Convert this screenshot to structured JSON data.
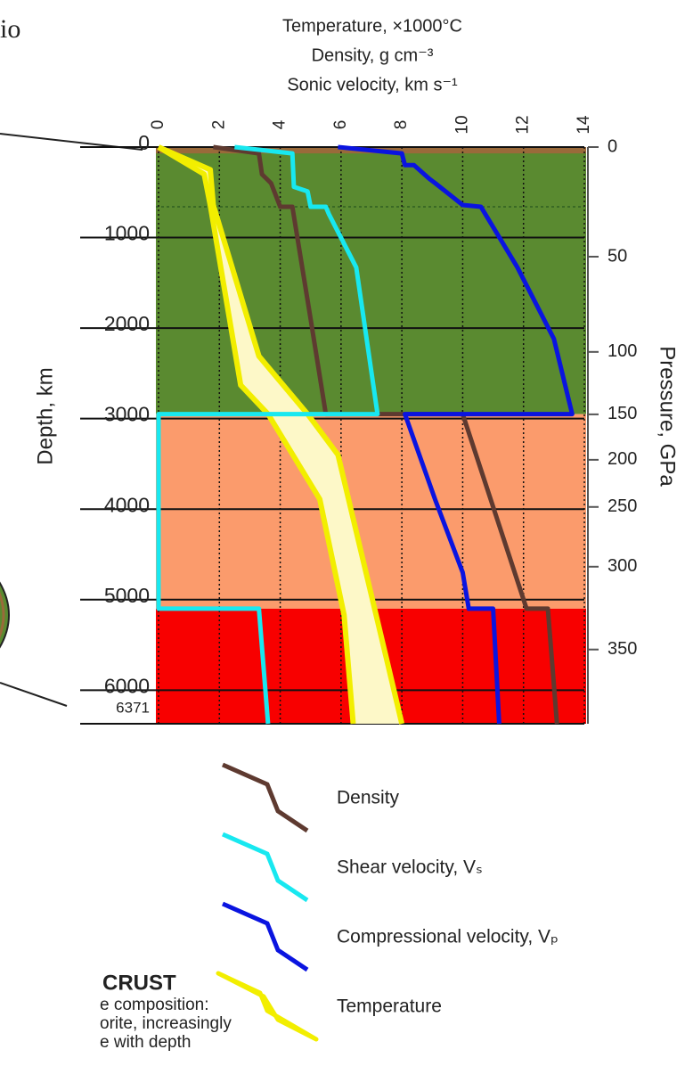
{
  "fragment_top": "io",
  "chart_data": {
    "type": "line",
    "x_label": [
      "Temperature, ×1000°C",
      "Density, g cm⁻³",
      "Sonic velocity, km s⁻¹"
    ],
    "ylabel": "Depth, km",
    "y2label": "Pressure, GPa",
    "xlim": [
      0,
      14
    ],
    "xticks": [
      0,
      2,
      4,
      6,
      8,
      10,
      12,
      14
    ],
    "ylim": [
      0,
      6371
    ],
    "yticks": [
      0,
      1000,
      2000,
      3000,
      4000,
      5000,
      6000,
      6371
    ],
    "pressure_ticks": [
      {
        "pressure": 0,
        "depth": 0
      },
      {
        "pressure": 50,
        "depth": 1211
      },
      {
        "pressure": 100,
        "depth": 2263
      },
      {
        "pressure": 150,
        "depth": 2953
      },
      {
        "pressure": 200,
        "depth": 3455
      },
      {
        "pressure": 250,
        "depth": 3976
      },
      {
        "pressure": 300,
        "depth": 4636
      },
      {
        "pressure": 350,
        "depth": 5551
      }
    ],
    "layers": [
      {
        "top": 0,
        "bottom": 2950,
        "color": "#5a8a30"
      },
      {
        "top": 2950,
        "bottom": 5100,
        "color": "#fb9b6c"
      },
      {
        "top": 5100,
        "bottom": 6371,
        "color": "#f80000"
      },
      {
        "top": 0,
        "bottom": 70,
        "color": "#9a6a3a"
      }
    ],
    "dashed_depth": 660,
    "series": [
      {
        "name": "Density",
        "color": "#5e3a30",
        "depth": [
          0,
          70,
          300,
          400,
          660,
          660,
          1900,
          2950,
          2950,
          5100,
          5100,
          6371
        ],
        "values": [
          1.8,
          3.3,
          3.4,
          3.7,
          4.0,
          4.4,
          5.0,
          5.5,
          10.0,
          12.1,
          12.8,
          13.1
        ]
      },
      {
        "name": "Shear velocity, Vₛ",
        "color": "#18e8f0",
        "depth": [
          0,
          70,
          440,
          490,
          660,
          660,
          740,
          1330,
          2950,
          2950,
          5100,
          5100,
          6371
        ],
        "values": [
          2.5,
          4.4,
          4.45,
          4.9,
          5.0,
          5.5,
          5.6,
          6.5,
          7.2,
          0,
          0,
          3.3,
          3.6
        ]
      },
      {
        "name": "Compressional velocity, Vₚ",
        "color": "#0a14e0",
        "depth": [
          0,
          70,
          200,
          200,
          350,
          400,
          640,
          660,
          1330,
          2120,
          2950,
          2950,
          3900,
          4700,
          5100,
          5100,
          6371
        ],
        "values": [
          5.9,
          8.0,
          8.1,
          8.4,
          8.9,
          9.1,
          10.0,
          10.6,
          11.8,
          13.0,
          13.6,
          8.1,
          9.1,
          10.0,
          10.2,
          11.0,
          11.2
        ]
      },
      {
        "name": "Temperature",
        "color": "#f2ee00",
        "fill": "#fdf8c8",
        "low": {
          "depth": [
            0,
            300,
            640,
            2630,
            2950,
            3890,
            5170,
            6371
          ],
          "values": [
            0,
            1.5,
            1.7,
            2.7,
            3.6,
            5.3,
            6.1,
            6.4
          ]
        },
        "high": {
          "depth": [
            0,
            250,
            640,
            2310,
            2950,
            3400,
            5660,
            6371
          ],
          "values": [
            0,
            1.7,
            1.8,
            3.3,
            4.9,
            5.9,
            7.5,
            8.0
          ]
        }
      }
    ],
    "annotations": [
      "CRUST",
      "e composition:",
      "orite, increasingly",
      "e with depth"
    ]
  }
}
